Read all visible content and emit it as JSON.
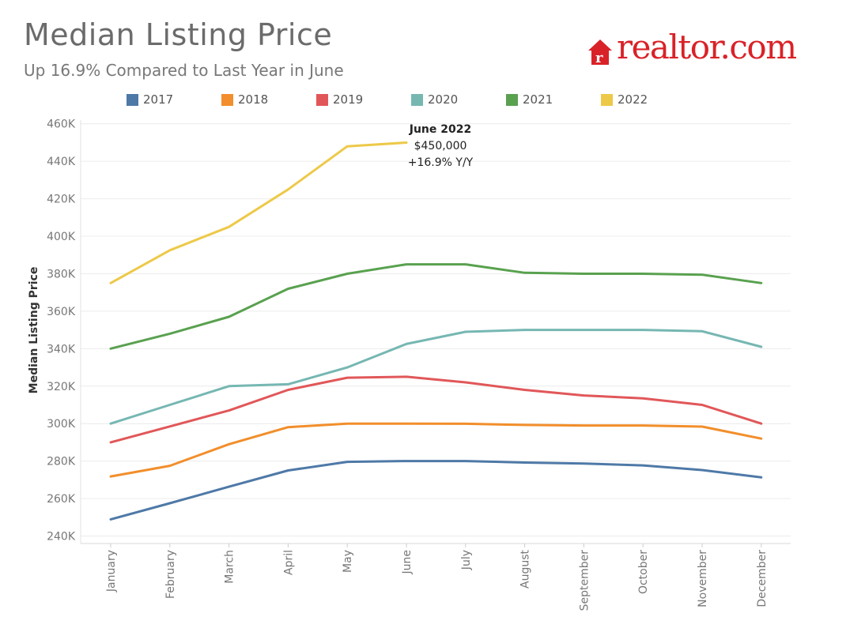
{
  "header": {
    "title": "Median Listing Price",
    "subtitle": "Up 16.9% Compared to Last Year in June",
    "logo_text": "realtor.com"
  },
  "colors": {
    "2017": "#4e79a7",
    "2018": "#f28e2b",
    "2019": "#e15759",
    "2020": "#76b7b2",
    "2021": "#59a14f",
    "2022": "#edc948",
    "brand": "#d92228"
  },
  "chart_data": {
    "type": "line",
    "title": "Median Listing Price",
    "subtitle": "Up 16.9% Compared to Last Year in June",
    "xlabel": "",
    "ylabel": "Median Listing Price",
    "ylim": [
      236000,
      462000
    ],
    "yticks": [
      "240K",
      "260K",
      "280K",
      "300K",
      "320K",
      "340K",
      "360K",
      "380K",
      "400K",
      "420K",
      "440K",
      "460K"
    ],
    "grid": true,
    "legend_position": "top",
    "categories": [
      "January",
      "February",
      "March",
      "April",
      "May",
      "June",
      "July",
      "August",
      "September",
      "October",
      "November",
      "December"
    ],
    "series": [
      {
        "name": "2017",
        "values": [
          248900,
          257500,
          266300,
          275000,
          279600,
          280000,
          280000,
          279200,
          278700,
          277700,
          275200,
          271300
        ]
      },
      {
        "name": "2018",
        "values": [
          271800,
          277500,
          289000,
          298100,
          300000,
          300000,
          299900,
          299300,
          299000,
          299000,
          298400,
          292000
        ]
      },
      {
        "name": "2019",
        "values": [
          290000,
          298500,
          307000,
          318000,
          324500,
          325000,
          322000,
          318000,
          315000,
          313500,
          310000,
          300000
        ]
      },
      {
        "name": "2020",
        "values": [
          300000,
          310000,
          320000,
          321000,
          330000,
          342500,
          349000,
          350000,
          350000,
          350000,
          349300,
          341000
        ]
      },
      {
        "name": "2021",
        "values": [
          340000,
          348000,
          357000,
          372000,
          380000,
          385000,
          385000,
          380500,
          380000,
          380000,
          379500,
          375000
        ]
      },
      {
        "name": "2022",
        "values": [
          375000,
          392500,
          405000,
          425000,
          448000,
          450000,
          null,
          null,
          null,
          null,
          null,
          null
        ]
      }
    ],
    "annotations": [
      {
        "category": "June",
        "series": "2022",
        "lines": [
          "June 2022",
          "$450,000",
          "+16.9% Y/Y"
        ]
      }
    ]
  }
}
